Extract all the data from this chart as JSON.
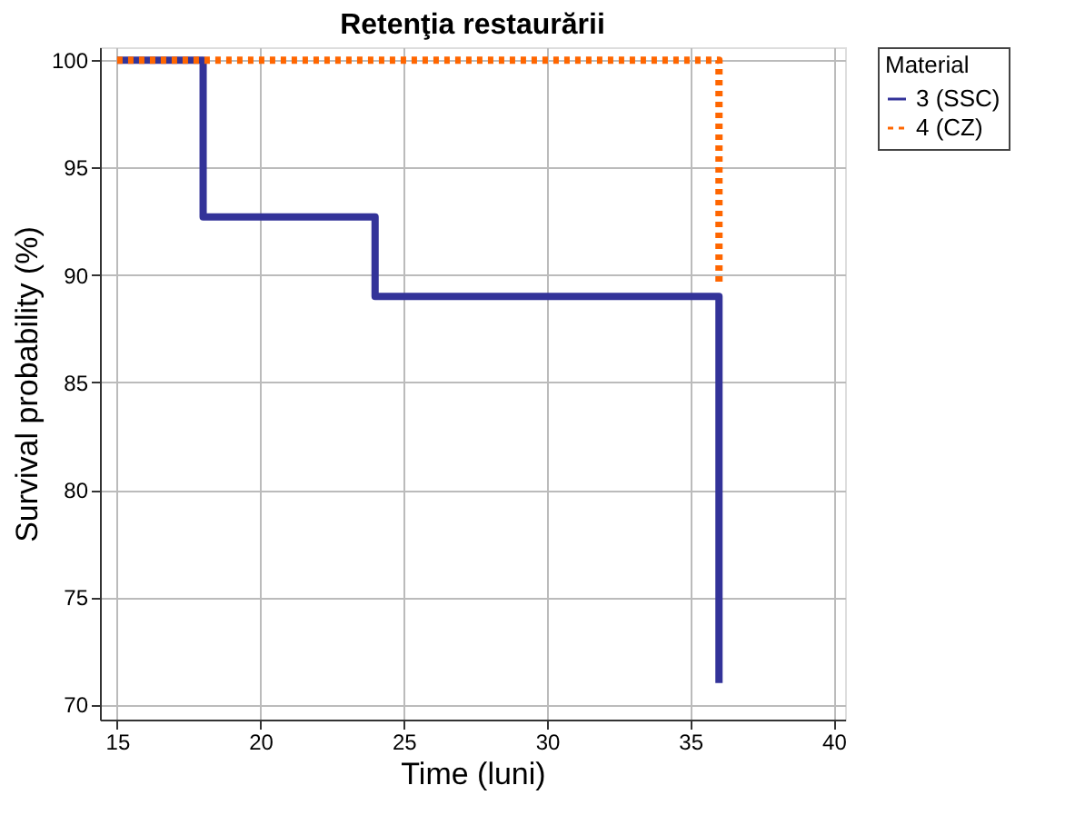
{
  "chart_data": {
    "type": "step",
    "title": "Retenţia restaurării",
    "xlabel": "Time (luni)",
    "ylabel": "Survival probability (%)",
    "legend_title": "Material",
    "series": [
      {
        "name": "3 (SSC)",
        "color": "#333399",
        "line_style": "solid",
        "x": [
          15,
          18,
          24,
          36
        ],
        "values": [
          100,
          92.7,
          89.0,
          71.0
        ]
      },
      {
        "name": "4 (CZ)",
        "color": "#ff6600",
        "line_style": "dotted",
        "x": [
          15,
          36
        ],
        "values": [
          100,
          89.6
        ]
      }
    ],
    "xlim": [
      14.4,
      40.4
    ],
    "xticks": [
      15,
      20,
      25,
      30,
      35,
      40
    ],
    "ylim": [
      69.3,
      100.6
    ],
    "yticks": [
      70,
      75,
      80,
      85,
      90,
      95,
      100
    ],
    "grid": true,
    "legend": "right",
    "marker": "none"
  }
}
